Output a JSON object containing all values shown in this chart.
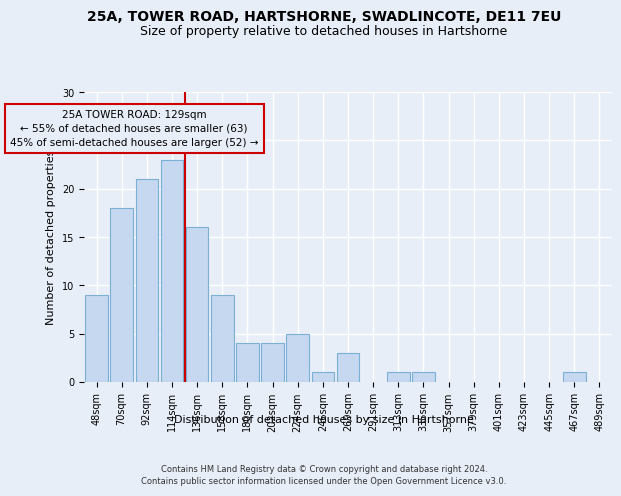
{
  "title": "25A, TOWER ROAD, HARTSHORNE, SWADLINCOTE, DE11 7EU",
  "subtitle": "Size of property relative to detached houses in Hartshorne",
  "xlabel": "Distribution of detached houses by size in Hartshorne",
  "ylabel": "Number of detached properties",
  "categories": [
    "48sqm",
    "70sqm",
    "92sqm",
    "114sqm",
    "136sqm",
    "158sqm",
    "180sqm",
    "202sqm",
    "224sqm",
    "246sqm",
    "269sqm",
    "291sqm",
    "313sqm",
    "335sqm",
    "357sqm",
    "379sqm",
    "401sqm",
    "423sqm",
    "445sqm",
    "467sqm",
    "489sqm"
  ],
  "values": [
    9,
    18,
    21,
    23,
    16,
    9,
    4,
    4,
    5,
    1,
    3,
    0,
    1,
    1,
    0,
    0,
    0,
    0,
    0,
    1,
    0
  ],
  "bar_color": "#c5d8f0",
  "bar_edge_color": "#7bafd4",
  "vline_color": "#cc0000",
  "vline_x_index": 4,
  "annotation_title": "25A TOWER ROAD: 129sqm",
  "annotation_line1": "← 55% of detached houses are smaller (63)",
  "annotation_line2": "45% of semi-detached houses are larger (52) →",
  "annotation_box_color": "#cc0000",
  "ylim": [
    0,
    30
  ],
  "yticks": [
    0,
    5,
    10,
    15,
    20,
    25,
    30
  ],
  "footer1": "Contains HM Land Registry data © Crown copyright and database right 2024.",
  "footer2": "Contains public sector information licensed under the Open Government Licence v3.0.",
  "bg_color": "#e8eef8",
  "grid_color": "#ffffff",
  "title_fontsize": 10,
  "subtitle_fontsize": 9,
  "ylabel_fontsize": 8,
  "xlabel_fontsize": 8,
  "tick_fontsize": 7,
  "annotation_fontsize": 7.5,
  "footer_fontsize": 6
}
